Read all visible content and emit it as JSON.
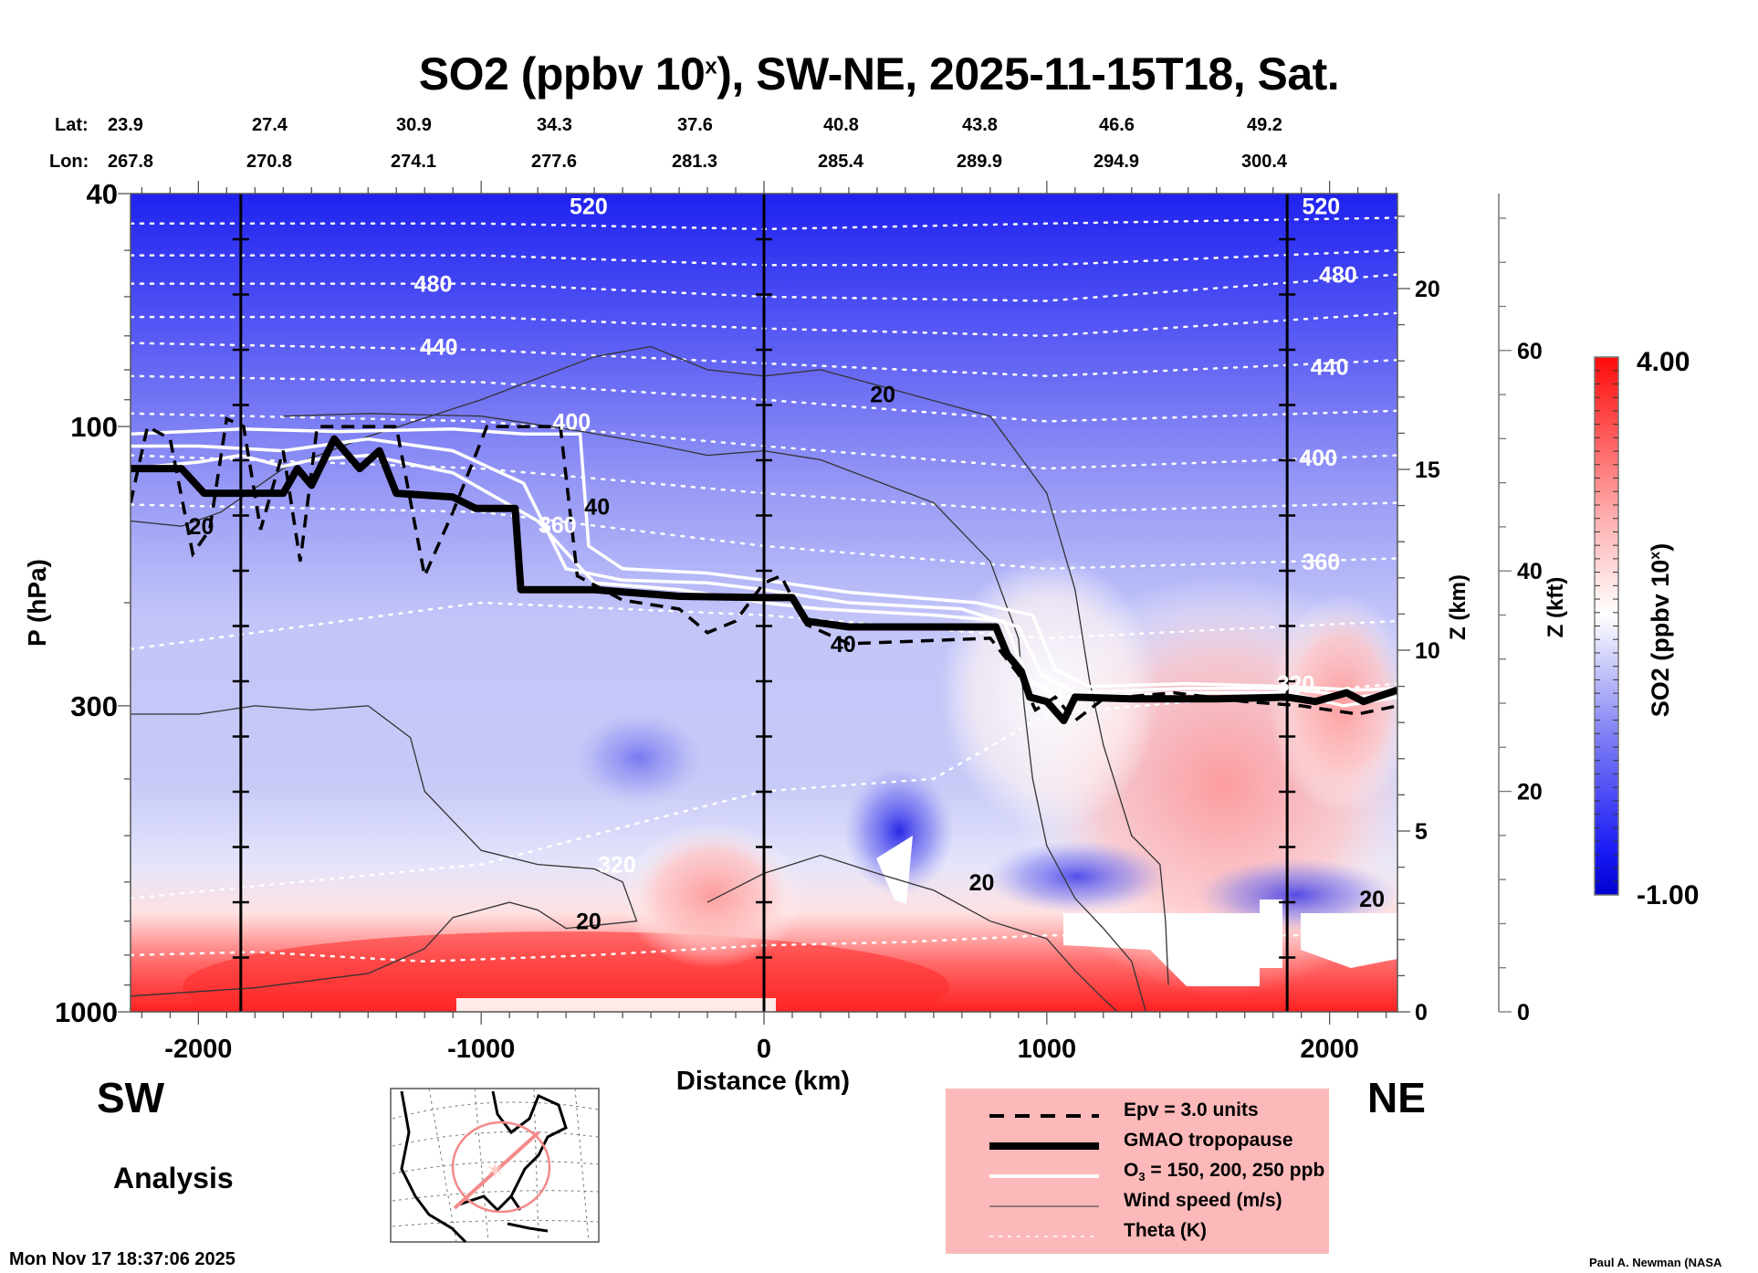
{
  "title": {
    "prefix": "SO2 (ppbv 10",
    "sup": "x",
    "suffix": "), SW-NE, 2025-11-15T18, Sat."
  },
  "latlon": {
    "lat_label": "Lat:",
    "lon_label": "Lon:",
    "lat": [
      "23.9",
      "27.4",
      "30.9",
      "34.3",
      "37.6",
      "40.8",
      "43.8",
      "46.6",
      "49.2"
    ],
    "lon": [
      "267.8",
      "270.8",
      "274.1",
      "277.6",
      "281.3",
      "285.4",
      "289.9",
      "294.9",
      "300.4"
    ]
  },
  "direction": {
    "left": "SW",
    "right": "NE"
  },
  "mode_label": "Analysis",
  "timestamp": "Mon Nov 17 18:37:06 2025",
  "credit": "Paul A. Newman (NASA",
  "legend": {
    "items": [
      {
        "style": "dashed",
        "label": "Epv = 3.0 units"
      },
      {
        "style": "thick",
        "label": "GMAO tropopause"
      },
      {
        "style": "white",
        "label_pre": "O",
        "label_sub": "3",
        "label_post": " = 150, 200, 250 ppb"
      },
      {
        "style": "thin",
        "label": "Wind speed (m/s)"
      },
      {
        "style": "dotted",
        "label": "Theta (K)"
      }
    ],
    "background": "#fdb9b9"
  },
  "colors": {
    "low": "#0000d8",
    "mid": "#ffffff",
    "high": "#ff0a0a",
    "theta": "#ffffff",
    "wind": "#333333"
  },
  "chart_data": {
    "type": "heatmap",
    "title": "SO2 (ppbv 10^x), SW-NE, 2025-11-15T18, Sat.",
    "xlabel": "Distance (km)",
    "ylabel": "P (hPa)",
    "ylabel_right": "Z (km)",
    "ylabel_right2": "Z (kft)",
    "colorbar_label": "SO2 (ppbv 10^x)",
    "xlim": [
      -2240,
      2240
    ],
    "ylim": [
      1000,
      40
    ],
    "yscale": "log",
    "x_ticks": [
      -2000,
      -1000,
      0,
      1000,
      2000
    ],
    "x_tick_labels": [
      "-2000",
      "-1000",
      "0",
      "1000",
      "2000"
    ],
    "y_ticks": [
      40,
      100,
      300,
      1000
    ],
    "y_tick_labels": [
      "40",
      "100",
      "300",
      "1000"
    ],
    "z_km_ticks": [
      0,
      5,
      10,
      15,
      20
    ],
    "z_km_tick_labels": [
      "0",
      "5",
      "10",
      "15",
      "20"
    ],
    "z_kft_ticks": [
      0,
      20,
      40,
      60
    ],
    "z_kft_tick_labels": [
      "0",
      "20",
      "40",
      "60"
    ],
    "colorbar": {
      "min": -1.0,
      "max": 4.0,
      "min_label": "-1.00",
      "max_label": "4.00",
      "levels": 40
    },
    "vertical_markers_km": [
      -1850,
      0,
      1850
    ],
    "theta_labels": [
      {
        "text": "520",
        "x": -620,
        "p": 42
      },
      {
        "text": "480",
        "x": -1170,
        "p": 57
      },
      {
        "text": "440",
        "x": -1150,
        "p": 73
      },
      {
        "text": "400",
        "x": -680,
        "p": 98
      },
      {
        "text": "360",
        "x": -730,
        "p": 147
      },
      {
        "text": "320",
        "x": -520,
        "p": 560
      },
      {
        "text": "520",
        "x": 1970,
        "p": 42
      },
      {
        "text": "480",
        "x": 2030,
        "p": 55
      },
      {
        "text": "440",
        "x": 2000,
        "p": 79
      },
      {
        "text": "400",
        "x": 1960,
        "p": 113
      },
      {
        "text": "360",
        "x": 1970,
        "p": 170
      },
      {
        "text": "320",
        "x": 1880,
        "p": 275
      }
    ],
    "wind_labels": [
      {
        "text": "20",
        "x": -1990,
        "p": 148
      },
      {
        "text": "40",
        "x": -590,
        "p": 137
      },
      {
        "text": "20",
        "x": 420,
        "p": 88
      },
      {
        "text": "40",
        "x": 280,
        "p": 235
      },
      {
        "text": "20",
        "x": -620,
        "p": 700
      },
      {
        "text": "20",
        "x": 770,
        "p": 600
      },
      {
        "text": "20",
        "x": 2150,
        "p": 640
      }
    ],
    "theta_levels": [
      {
        "K": 520,
        "points": [
          [
            -2240,
            45
          ],
          [
            -1000,
            45
          ],
          [
            0,
            46
          ],
          [
            1000,
            45
          ],
          [
            2240,
            44
          ]
        ]
      },
      {
        "K": 500,
        "points": [
          [
            -2240,
            51
          ],
          [
            -1000,
            51
          ],
          [
            0,
            53
          ],
          [
            1000,
            53
          ],
          [
            2240,
            50
          ]
        ]
      },
      {
        "K": 480,
        "points": [
          [
            -2240,
            57
          ],
          [
            -1000,
            57
          ],
          [
            0,
            60
          ],
          [
            1000,
            61
          ],
          [
            2240,
            55
          ]
        ]
      },
      {
        "K": 460,
        "points": [
          [
            -2240,
            65
          ],
          [
            -1000,
            65
          ],
          [
            0,
            68
          ],
          [
            1000,
            70
          ],
          [
            2240,
            64
          ]
        ]
      },
      {
        "K": 440,
        "points": [
          [
            -2240,
            72
          ],
          [
            -1000,
            74
          ],
          [
            0,
            78
          ],
          [
            1000,
            82
          ],
          [
            2240,
            77
          ]
        ]
      },
      {
        "K": 420,
        "points": [
          [
            -2240,
            82
          ],
          [
            -1000,
            84
          ],
          [
            0,
            90
          ],
          [
            1000,
            98
          ],
          [
            2240,
            94
          ]
        ]
      },
      {
        "K": 400,
        "points": [
          [
            -2240,
            95
          ],
          [
            -1000,
            98
          ],
          [
            0,
            108
          ],
          [
            1000,
            118
          ],
          [
            2240,
            112
          ]
        ]
      },
      {
        "K": 380,
        "points": [
          [
            -2240,
            112
          ],
          [
            -1000,
            118
          ],
          [
            0,
            130
          ],
          [
            1000,
            140
          ],
          [
            2240,
            135
          ]
        ]
      },
      {
        "K": 360,
        "points": [
          [
            -2240,
            136
          ],
          [
            -1000,
            140
          ],
          [
            0,
            160
          ],
          [
            1000,
            175
          ],
          [
            2240,
            168
          ]
        ]
      },
      {
        "K": 340,
        "points": [
          [
            -2240,
            240
          ],
          [
            -1800,
            225
          ],
          [
            -1000,
            200
          ],
          [
            0,
            210
          ],
          [
            1000,
            230
          ],
          [
            2240,
            215
          ]
        ]
      },
      {
        "K": 320,
        "points": [
          [
            -2240,
            640
          ],
          [
            -1800,
            610
          ],
          [
            -1000,
            560
          ],
          [
            -400,
            470
          ],
          [
            0,
            420
          ],
          [
            600,
            400
          ],
          [
            1000,
            310
          ],
          [
            2240,
            275
          ]
        ]
      },
      {
        "K": 300,
        "points": [
          [
            -2240,
            800
          ],
          [
            -1800,
            790
          ],
          [
            -1200,
            820
          ],
          [
            -600,
            800
          ],
          [
            0,
            770
          ],
          [
            500,
            760
          ],
          [
            1000,
            740
          ],
          [
            2240,
            740
          ]
        ]
      }
    ],
    "tropopause": [
      [
        -2240,
        118
      ],
      [
        -2060,
        118
      ],
      [
        -1980,
        130
      ],
      [
        -1700,
        130
      ],
      [
        -1650,
        118
      ],
      [
        -1600,
        126
      ],
      [
        -1520,
        105
      ],
      [
        -1430,
        118
      ],
      [
        -1360,
        110
      ],
      [
        -1300,
        130
      ],
      [
        -1100,
        132
      ],
      [
        -1020,
        138
      ],
      [
        -880,
        138
      ],
      [
        -860,
        190
      ],
      [
        -600,
        190
      ],
      [
        -300,
        195
      ],
      [
        0,
        196
      ],
      [
        100,
        196
      ],
      [
        150,
        215
      ],
      [
        300,
        220
      ],
      [
        820,
        220
      ],
      [
        860,
        245
      ],
      [
        910,
        262
      ],
      [
        940,
        290
      ],
      [
        1000,
        295
      ],
      [
        1060,
        318
      ],
      [
        1100,
        290
      ],
      [
        1300,
        292
      ],
      [
        1600,
        292
      ],
      [
        1850,
        290
      ],
      [
        1950,
        295
      ],
      [
        2060,
        285
      ],
      [
        2120,
        295
      ],
      [
        2240,
        282
      ]
    ],
    "epv": [
      [
        -2240,
        135
      ],
      [
        -2180,
        100
      ],
      [
        -2100,
        105
      ],
      [
        -2020,
        165
      ],
      [
        -1960,
        150
      ],
      [
        -1900,
        97
      ],
      [
        -1840,
        100
      ],
      [
        -1780,
        150
      ],
      [
        -1700,
        110
      ],
      [
        -1640,
        170
      ],
      [
        -1580,
        100
      ],
      [
        -1300,
        100
      ],
      [
        -1200,
        180
      ],
      [
        -1100,
        140
      ],
      [
        -980,
        100
      ],
      [
        -720,
        100
      ],
      [
        -660,
        180
      ],
      [
        -500,
        198
      ],
      [
        -300,
        205
      ],
      [
        -200,
        225
      ],
      [
        -100,
        215
      ],
      [
        0,
        185
      ],
      [
        60,
        180
      ],
      [
        150,
        218
      ],
      [
        300,
        235
      ],
      [
        800,
        230
      ],
      [
        900,
        265
      ],
      [
        960,
        305
      ],
      [
        1030,
        290
      ],
      [
        1100,
        318
      ],
      [
        1200,
        292
      ],
      [
        1450,
        285
      ],
      [
        1700,
        295
      ],
      [
        1900,
        300
      ],
      [
        2100,
        310
      ],
      [
        2240,
        300
      ]
    ],
    "o3_contours": [
      {
        "ppb": 150,
        "points": [
          [
            -2240,
            118
          ],
          [
            -2000,
            115
          ],
          [
            -1850,
            112
          ],
          [
            -1700,
            117
          ],
          [
            -1600,
            114
          ],
          [
            -1400,
            112
          ],
          [
            -1100,
            120
          ],
          [
            -800,
            145
          ],
          [
            -600,
            185
          ],
          [
            -300,
            190
          ],
          [
            0,
            200
          ],
          [
            200,
            205
          ],
          [
            600,
            210
          ],
          [
            850,
            215
          ],
          [
            930,
            270
          ],
          [
            1050,
            290
          ],
          [
            1500,
            285
          ],
          [
            1850,
            285
          ],
          [
            2050,
            300
          ],
          [
            2240,
            290
          ]
        ]
      },
      {
        "ppb": 200,
        "points": [
          [
            -2240,
            108
          ],
          [
            -2000,
            108
          ],
          [
            -1700,
            110
          ],
          [
            -1400,
            105
          ],
          [
            -1100,
            110
          ],
          [
            -850,
            125
          ],
          [
            -700,
            175
          ],
          [
            -500,
            183
          ],
          [
            -200,
            185
          ],
          [
            0,
            190
          ],
          [
            300,
            200
          ],
          [
            700,
            205
          ],
          [
            900,
            220
          ],
          [
            980,
            265
          ],
          [
            1100,
            285
          ],
          [
            1500,
            280
          ],
          [
            1850,
            280
          ],
          [
            2100,
            290
          ],
          [
            2240,
            285
          ]
        ]
      },
      {
        "ppb": 250,
        "points": [
          [
            -2240,
            103
          ],
          [
            -1850,
            101
          ],
          [
            -1500,
            102
          ],
          [
            -1100,
            101
          ],
          [
            -850,
            103
          ],
          [
            -650,
            103
          ],
          [
            -620,
            160
          ],
          [
            -500,
            175
          ],
          [
            -200,
            178
          ],
          [
            0,
            183
          ],
          [
            300,
            192
          ],
          [
            750,
            200
          ],
          [
            950,
            210
          ],
          [
            1030,
            260
          ],
          [
            1150,
            278
          ],
          [
            1500,
            275
          ],
          [
            1850,
            278
          ],
          [
            2100,
            282
          ],
          [
            2240,
            280
          ]
        ]
      }
    ],
    "wind_contours": [
      {
        "speed": 20,
        "points": [
          [
            -2240,
            145
          ],
          [
            -2060,
            148
          ],
          [
            -1920,
            140
          ],
          [
            -1700,
            118
          ],
          [
            -1400,
            104
          ],
          [
            -1000,
            90
          ],
          [
            -600,
            76
          ],
          [
            -400,
            73
          ],
          [
            -200,
            80
          ],
          [
            0,
            82
          ],
          [
            200,
            80
          ],
          [
            400,
            85
          ],
          [
            800,
            96
          ],
          [
            1000,
            130
          ],
          [
            1100,
            190
          ],
          [
            1150,
            270
          ],
          [
            1200,
            350
          ],
          [
            1300,
            500
          ],
          [
            1400,
            560
          ],
          [
            1420,
            700
          ],
          [
            1430,
            900
          ]
        ]
      },
      {
        "speed": 20,
        "points": [
          [
            -2240,
            310
          ],
          [
            -2000,
            310
          ],
          [
            -1800,
            300
          ],
          [
            -1600,
            305
          ],
          [
            -1400,
            300
          ],
          [
            -1250,
            340
          ],
          [
            -1200,
            420
          ],
          [
            -1000,
            530
          ],
          [
            -800,
            560
          ],
          [
            -600,
            570
          ],
          [
            -500,
            600
          ],
          [
            -450,
            700
          ],
          [
            -700,
            720
          ],
          [
            -800,
            670
          ],
          [
            -900,
            650
          ],
          [
            -1100,
            690
          ],
          [
            -1200,
            780
          ],
          [
            -1400,
            860
          ],
          [
            -1800,
            910
          ],
          [
            -2240,
            940
          ]
        ]
      },
      {
        "speed": 40,
        "points": [
          [
            -1700,
            96
          ],
          [
            -1400,
            95
          ],
          [
            -1000,
            96
          ],
          [
            -640,
            102
          ],
          [
            -400,
            107
          ],
          [
            -200,
            112
          ],
          [
            0,
            110
          ],
          [
            200,
            114
          ],
          [
            600,
            135
          ],
          [
            800,
            170
          ],
          [
            900,
            230
          ],
          [
            920,
            300
          ],
          [
            950,
            400
          ],
          [
            1000,
            520
          ],
          [
            1100,
            640
          ],
          [
            1200,
            720
          ],
          [
            1300,
            820
          ],
          [
            1350,
            1000
          ]
        ]
      },
      {
        "speed": 20,
        "points": [
          [
            -200,
            650
          ],
          [
            0,
            580
          ],
          [
            200,
            540
          ],
          [
            400,
            580
          ],
          [
            600,
            620
          ],
          [
            800,
            700
          ],
          [
            1000,
            750
          ],
          [
            1100,
            850
          ],
          [
            1200,
            950
          ],
          [
            1250,
            1000
          ]
        ]
      }
    ],
    "colorbar_label_sup": "x"
  }
}
